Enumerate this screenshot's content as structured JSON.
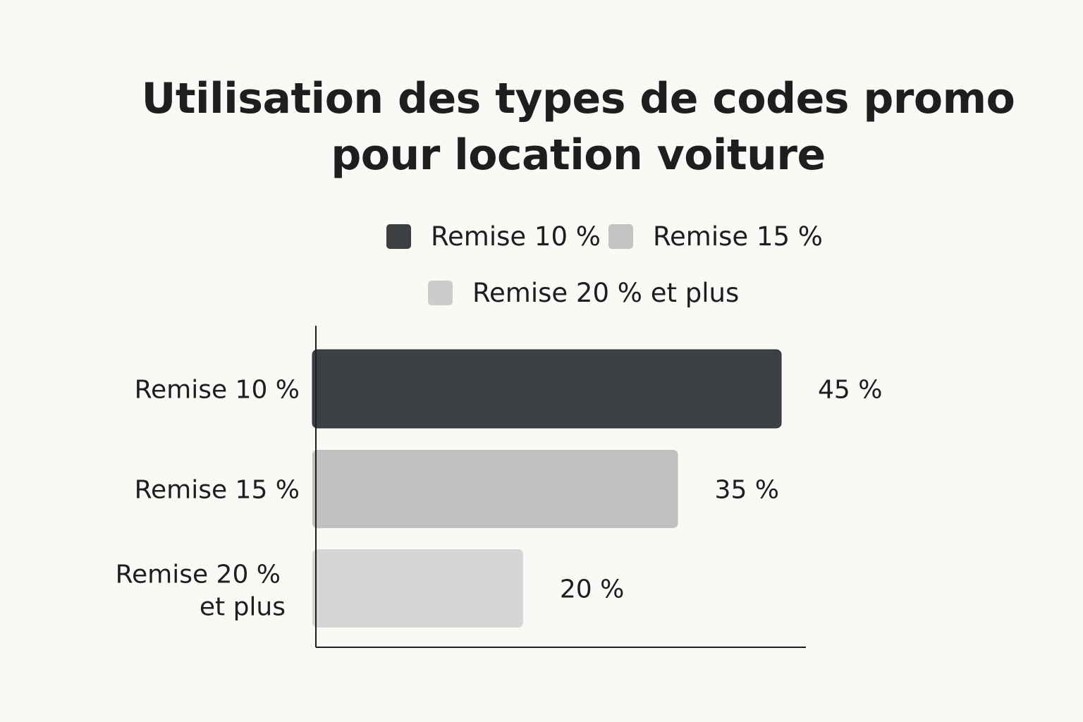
{
  "chart_data": {
    "type": "bar",
    "orientation": "horizontal",
    "title": [
      "Utilisation des types de codes promo",
      "pour location voiture"
    ],
    "categories": [
      "Remise 10 %",
      "Remise 15 %",
      "Remise 20 % et plus"
    ],
    "category_lines": [
      [
        "Remise 10 %"
      ],
      [
        "Remise 15 %"
      ],
      [
        "Remise 20 %",
        "et plus"
      ]
    ],
    "values": [
      45,
      35,
      20
    ],
    "value_labels": [
      "45 %",
      "35 %",
      "20 %"
    ],
    "colors": [
      "#3d4042",
      "#c0c0c0",
      "#d6d6d6"
    ],
    "xlim": [
      0,
      45
    ],
    "grid": false,
    "legend": {
      "position": "top",
      "entries": [
        {
          "label": "Remise 10 %",
          "color": "#3d4042"
        },
        {
          "label": "Remise 15 %",
          "color": "#c3c3c3"
        },
        {
          "label": "Remise 20 % et plus",
          "color": "#cccccc"
        }
      ]
    }
  }
}
